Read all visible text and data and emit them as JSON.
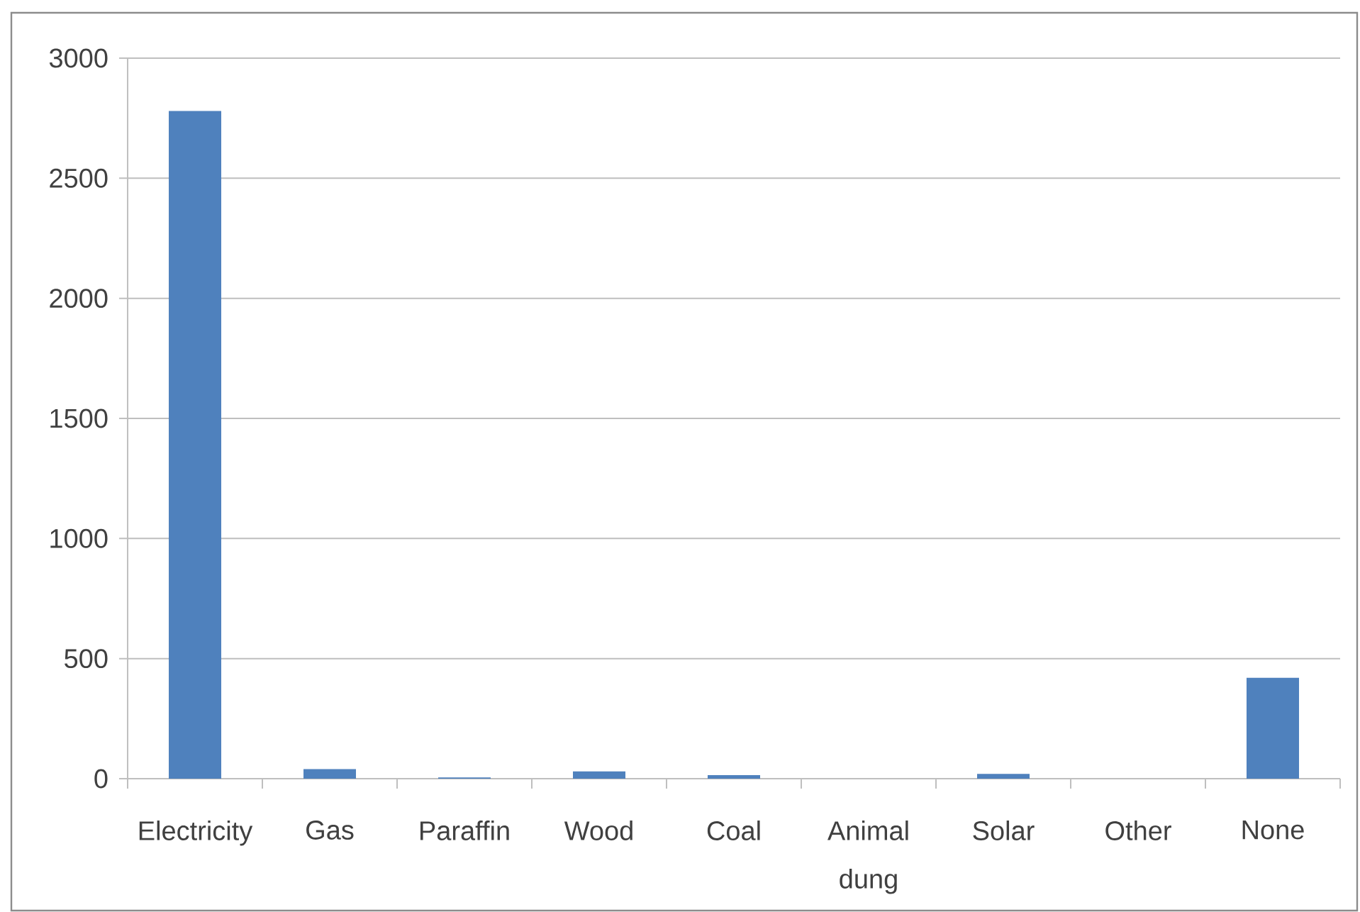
{
  "chart_data": {
    "type": "bar",
    "categories": [
      "Electricity",
      "Gas",
      "Paraffin",
      "Wood",
      "Coal",
      "Animal dung",
      "Solar",
      "Other",
      "None"
    ],
    "values": [
      2780,
      40,
      5,
      30,
      15,
      0,
      20,
      0,
      420
    ],
    "color": "#4f81bd",
    "ylim": [
      0,
      3000
    ],
    "yticks": [
      0,
      500,
      1000,
      1500,
      2000,
      2500,
      3000
    ],
    "grid": "y"
  }
}
